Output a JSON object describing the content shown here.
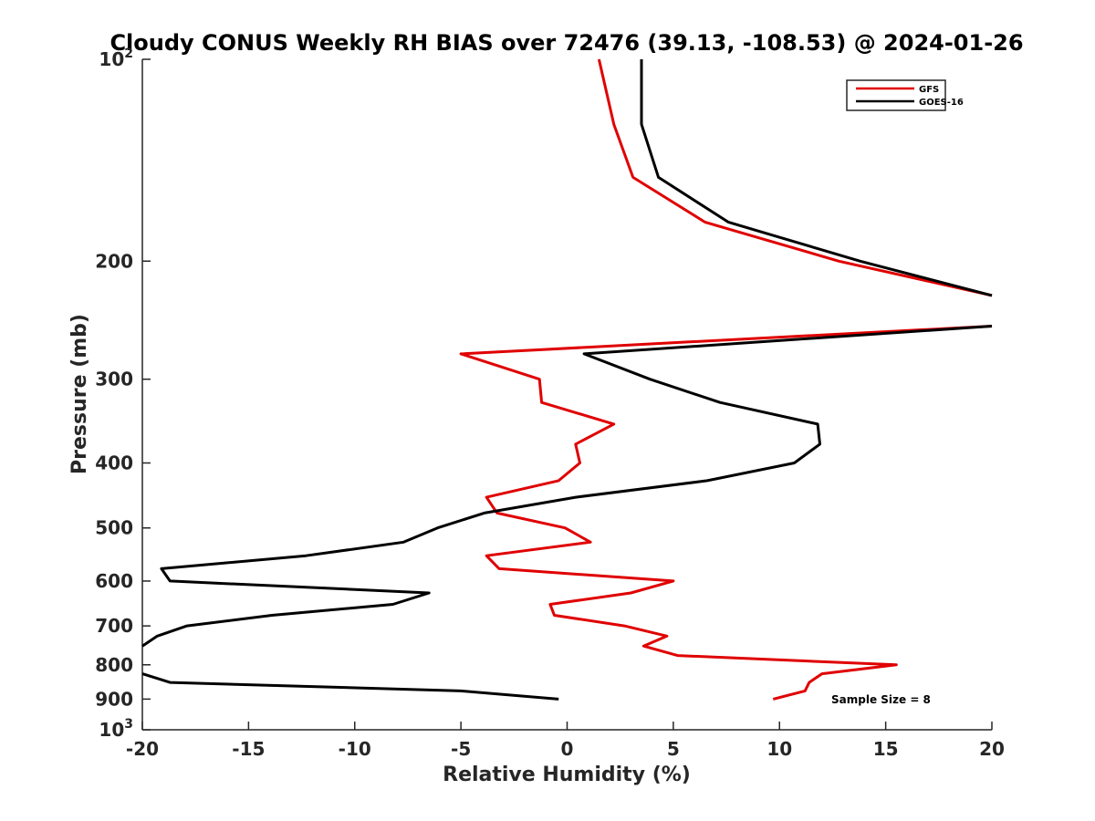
{
  "chart_data": {
    "type": "line",
    "title": "Cloudy CONUS Weekly RH BIAS over 72476 (39.13, -108.53) @ 2024-01-26",
    "xlabel": "Relative Humidity (%)",
    "ylabel": "Pressure (mb)",
    "xlim": [
      -20,
      20
    ],
    "ylim": [
      100,
      1000
    ],
    "y_scale": "log",
    "y_reversed": true,
    "grid": false,
    "x_ticks": [
      "-20",
      "-15",
      "-10",
      "-5",
      "0",
      "5",
      "10",
      "15",
      "20"
    ],
    "y_ticks": [
      {
        "value": 100,
        "base": "10",
        "exp": "2"
      },
      {
        "value": 200,
        "label": "200"
      },
      {
        "value": 300,
        "label": "300"
      },
      {
        "value": 400,
        "label": "400"
      },
      {
        "value": 500,
        "label": "500"
      },
      {
        "value": 600,
        "label": "600"
      },
      {
        "value": 700,
        "label": "700"
      },
      {
        "value": 800,
        "label": "800"
      },
      {
        "value": 900,
        "label": "900"
      },
      {
        "value": 1000,
        "base": "10",
        "exp": "3"
      }
    ],
    "legend_position": "top-right",
    "annotation": "Sample Size = 8",
    "series": [
      {
        "name": "GFS",
        "color": "#e00000",
        "points": [
          [
            1.5,
            100
          ],
          [
            2.2,
            125
          ],
          [
            3.1,
            150
          ],
          [
            6.5,
            175
          ],
          [
            12.8,
            200
          ],
          [
            20,
            225
          ],
          [
            null,
            250
          ],
          [
            20,
            250
          ],
          [
            -5,
            275
          ],
          [
            -1.3,
            300
          ],
          [
            -1.2,
            325
          ],
          [
            2.2,
            350
          ],
          [
            0.4,
            375
          ],
          [
            0.6,
            400
          ],
          [
            -0.4,
            425
          ],
          [
            -3.8,
            450
          ],
          [
            -3.3,
            475
          ],
          [
            -0.1,
            500
          ],
          [
            1.1,
            525
          ],
          [
            -3.8,
            550
          ],
          [
            -3.2,
            575
          ],
          [
            5.0,
            600
          ],
          [
            3.0,
            625
          ],
          [
            -0.8,
            650
          ],
          [
            -0.6,
            675
          ],
          [
            2.7,
            700
          ],
          [
            4.7,
            725
          ],
          [
            3.6,
            750
          ],
          [
            5.2,
            775
          ],
          [
            15.5,
            800
          ],
          [
            12.0,
            825
          ],
          [
            11.4,
            850
          ],
          [
            11.2,
            875
          ],
          [
            9.7,
            900
          ]
        ]
      },
      {
        "name": "GOES-16",
        "color": "#000000",
        "points": [
          [
            3.5,
            100
          ],
          [
            3.5,
            125
          ],
          [
            4.3,
            150
          ],
          [
            7.6,
            175
          ],
          [
            13.8,
            200
          ],
          [
            20,
            225
          ],
          [
            null,
            250
          ],
          [
            20,
            250
          ],
          [
            0.8,
            275
          ],
          [
            3.9,
            300
          ],
          [
            7.2,
            325
          ],
          [
            11.8,
            350
          ],
          [
            11.9,
            375
          ],
          [
            10.7,
            400
          ],
          [
            6.6,
            425
          ],
          [
            0.4,
            450
          ],
          [
            -3.9,
            475
          ],
          [
            -6.1,
            500
          ],
          [
            -7.7,
            525
          ],
          [
            -12.3,
            550
          ],
          [
            -19.1,
            575
          ],
          [
            -18.7,
            600
          ],
          [
            -6.5,
            625
          ],
          [
            -8.2,
            650
          ],
          [
            -13.9,
            675
          ],
          [
            -17.9,
            700
          ],
          [
            -19.3,
            725
          ],
          [
            -20,
            750
          ],
          [
            null,
            775
          ],
          [
            -20,
            825
          ],
          [
            -18.7,
            850
          ],
          [
            -5.0,
            875
          ],
          [
            -0.4,
            900
          ]
        ]
      }
    ]
  }
}
